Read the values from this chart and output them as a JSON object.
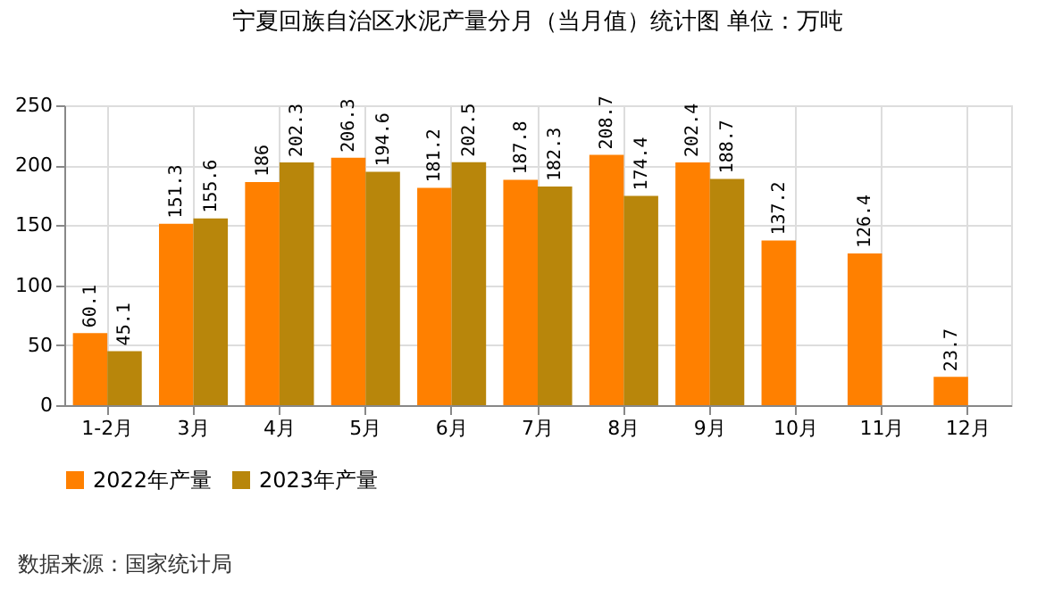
{
  "chart_data": {
    "type": "bar",
    "title": "宁夏回族自治区水泥产量分月（当月值）统计图 单位：万吨",
    "categories": [
      "1-2月",
      "3月",
      "4月",
      "5月",
      "6月",
      "7月",
      "8月",
      "9月",
      "10月",
      "11月",
      "12月"
    ],
    "series": [
      {
        "name": "2022年产量",
        "color": "#ff8000",
        "values": [
          60.1,
          151.3,
          186,
          206.3,
          181.2,
          187.8,
          208.7,
          202.4,
          137.2,
          126.4,
          23.7
        ]
      },
      {
        "name": "2023年产量",
        "color": "#b8860b",
        "values": [
          45.1,
          155.6,
          202.3,
          194.6,
          202.5,
          182.3,
          174.4,
          188.7,
          null,
          null,
          null
        ]
      }
    ],
    "ylim": [
      0,
      250
    ],
    "yticks": [
      0,
      50,
      100,
      150,
      200,
      250
    ],
    "grid": true,
    "legend": "bottom",
    "data_labels": true,
    "annotations": [
      "数据来源：国家统计局"
    ]
  }
}
